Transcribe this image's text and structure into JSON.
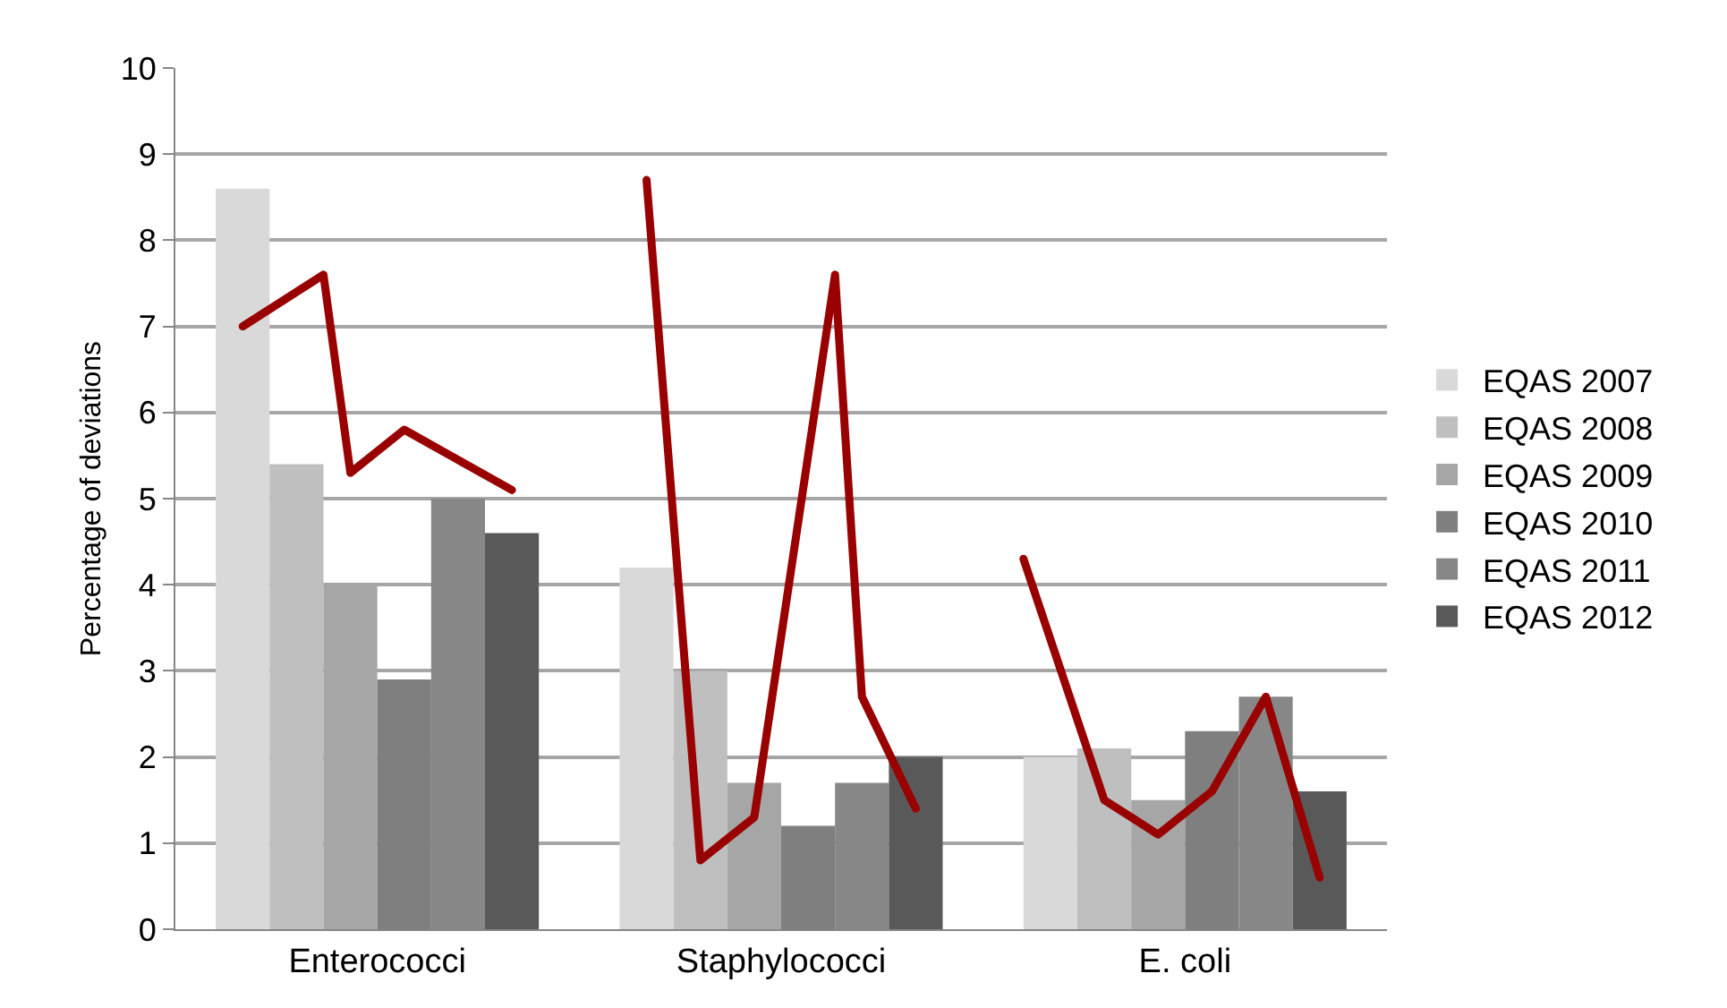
{
  "chart_data": {
    "type": "bar",
    "ylabel": "Percentage of deviations",
    "categories": [
      null,
      null,
      null,
      null,
      null,
      null,
      null,
      "Enterococci",
      null,
      null,
      null,
      null,
      null,
      null,
      null,
      null,
      null,
      null,
      null,
      null,
      null,
      null,
      "Staphylococci",
      null,
      null,
      null,
      null,
      null,
      null,
      null,
      null,
      null,
      null,
      null,
      null,
      null,
      null,
      "E. coli",
      null,
      null,
      null,
      null,
      null,
      null,
      null
    ],
    "series": [
      {
        "name": "EQAS 2007",
        "color": "#d9d9d9",
        "values": [
          null,
          null,
          8.6,
          null,
          null,
          null,
          null,
          null,
          null,
          null,
          null,
          null,
          null,
          null,
          null,
          null,
          null,
          4.2,
          null,
          null,
          null,
          null,
          null,
          null,
          null,
          null,
          null,
          null,
          null,
          null,
          null,
          null,
          2.0,
          null,
          null,
          null,
          null,
          null,
          null,
          null,
          null,
          null,
          null,
          null,
          null
        ]
      },
      {
        "name": "EQAS 2008",
        "color": "#bfbfbf",
        "values": [
          null,
          null,
          null,
          null,
          5.4,
          null,
          null,
          null,
          null,
          null,
          null,
          null,
          null,
          null,
          null,
          null,
          null,
          null,
          null,
          3.0,
          null,
          null,
          null,
          null,
          null,
          null,
          null,
          null,
          null,
          null,
          null,
          null,
          null,
          null,
          2.1,
          null,
          null,
          null,
          null,
          null,
          null,
          null,
          null,
          null,
          null
        ]
      },
      {
        "name": "EQAS 2009",
        "color": "#a6a6a6",
        "values": [
          null,
          null,
          null,
          null,
          null,
          null,
          4.0,
          null,
          null,
          null,
          null,
          null,
          null,
          null,
          null,
          null,
          null,
          null,
          null,
          null,
          null,
          1.7,
          null,
          null,
          null,
          null,
          null,
          null,
          null,
          null,
          null,
          null,
          null,
          null,
          null,
          null,
          1.5,
          null,
          null,
          null,
          null,
          null,
          null,
          null,
          null
        ]
      },
      {
        "name": "EQAS 2010",
        "color": "#7f7f7f",
        "values": [
          null,
          null,
          null,
          null,
          null,
          null,
          null,
          null,
          2.9,
          null,
          null,
          null,
          null,
          null,
          null,
          null,
          null,
          null,
          null,
          null,
          null,
          null,
          null,
          1.2,
          null,
          null,
          null,
          null,
          null,
          null,
          null,
          null,
          null,
          null,
          null,
          null,
          null,
          null,
          2.3,
          null,
          null,
          null,
          null,
          null,
          null
        ]
      },
      {
        "name": "EQAS 2011",
        "color": "#878787",
        "values": [
          null,
          null,
          null,
          null,
          null,
          null,
          null,
          null,
          null,
          null,
          5.0,
          null,
          null,
          null,
          null,
          null,
          null,
          null,
          null,
          null,
          null,
          null,
          null,
          null,
          null,
          1.7,
          null,
          null,
          null,
          null,
          null,
          null,
          null,
          null,
          null,
          null,
          null,
          null,
          null,
          null,
          2.7,
          null,
          null,
          null,
          null
        ]
      },
      {
        "name": "EQAS 2012",
        "color": "#595959",
        "values": [
          null,
          null,
          null,
          null,
          null,
          null,
          null,
          null,
          null,
          null,
          null,
          null,
          4.6,
          null,
          null,
          null,
          null,
          null,
          null,
          null,
          null,
          null,
          null,
          null,
          null,
          null,
          null,
          2.0,
          null,
          null,
          null,
          null,
          null,
          null,
          null,
          null,
          null,
          null,
          null,
          null,
          null,
          null,
          1.6,
          null,
          null
        ]
      },
      {
        "type": "line",
        "color": "#990000",
        "values": [
          null,
          null,
          7.0,
          null,
          null,
          7.6,
          5.3,
          null,
          5.8,
          null,
          null,
          null,
          5.1,
          null,
          null,
          null,
          null,
          null,
          null,
          null,
          null,
          null,
          null,
          null,
          null,
          null,
          null,
          null,
          null,
          null,
          null,
          null,
          null,
          null,
          null,
          null,
          null,
          null,
          null,
          null,
          null,
          null,
          null,
          null,
          null
        ]
      },
      {
        "type": "line",
        "color": "#990000",
        "values": [
          null,
          null,
          null,
          null,
          null,
          null,
          null,
          null,
          null,
          null,
          null,
          null,
          null,
          null,
          null,
          null,
          null,
          8.7,
          null,
          0.8,
          null,
          1.3,
          null,
          null,
          7.6,
          2.7,
          null,
          1.4,
          null,
          null,
          null,
          null,
          null,
          null,
          null,
          null,
          null,
          null,
          null,
          null,
          null,
          null,
          null,
          null,
          null
        ]
      },
      {
        "type": "line",
        "color": "#990000",
        "values": [
          null,
          null,
          null,
          null,
          null,
          null,
          null,
          null,
          null,
          null,
          null,
          null,
          null,
          null,
          null,
          null,
          null,
          null,
          null,
          null,
          null,
          null,
          null,
          null,
          null,
          null,
          null,
          null,
          null,
          null,
          null,
          4.3,
          null,
          null,
          1.5,
          null,
          1.1,
          null,
          1.6,
          null,
          2.7,
          null,
          0.6,
          null,
          null
        ]
      }
    ],
    "ylim": [
      0,
      10
    ],
    "yticks": [
      0,
      1,
      2,
      3,
      4,
      5,
      6,
      7,
      8,
      9,
      10
    ],
    "grid": "y",
    "legend": "right",
    "line_style": "solid"
  }
}
